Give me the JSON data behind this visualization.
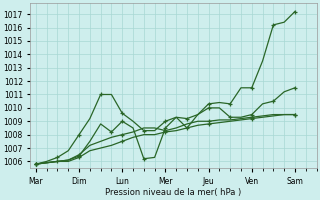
{
  "xlabel": "Pression niveau de la mer( hPa )",
  "day_labels": [
    "Mar",
    "Dim",
    "Lun",
    "Mer",
    "Jeu",
    "Ven",
    "Sam"
  ],
  "day_tick_positions": [
    0,
    4,
    8,
    12,
    16,
    20,
    24
  ],
  "xlim": [
    -0.5,
    26.0
  ],
  "ylim": [
    1005.5,
    1017.8
  ],
  "yticks": [
    1006,
    1007,
    1008,
    1009,
    1010,
    1011,
    1012,
    1013,
    1014,
    1015,
    1016,
    1017
  ],
  "bg_color": "#ceeeed",
  "grid_color": "#a8d8d4",
  "line_color": "#2a6628",
  "lines": [
    [
      1005.8,
      1005.9,
      1006.0,
      1006.1,
      1006.4,
      1007.5,
      1008.8,
      1008.2,
      1009.0,
      1008.5,
      1006.2,
      1006.3,
      1008.5,
      1009.3,
      1009.2,
      1009.5,
      1010.3,
      1010.4,
      1010.3,
      1011.5,
      1011.5,
      1013.5,
      1016.2,
      1016.4,
      1017.2
    ],
    [
      1005.8,
      1006.0,
      1006.3,
      1006.8,
      1008.0,
      1009.2,
      1011.0,
      1011.0,
      1009.6,
      1009.0,
      1008.3,
      1008.3,
      1009.0,
      1009.3,
      1008.5,
      1009.5,
      1010.0,
      1010.0,
      1009.3,
      1009.3,
      1009.5,
      1010.3,
      1010.5,
      1011.2,
      1011.5
    ],
    [
      1005.8,
      1005.9,
      1006.0,
      1006.1,
      1006.5,
      1007.2,
      1007.5,
      1007.8,
      1008.0,
      1008.2,
      1008.5,
      1008.5,
      1008.3,
      1008.5,
      1008.8,
      1009.0,
      1009.0,
      1009.1,
      1009.1,
      1009.2,
      1009.3,
      1009.4,
      1009.5,
      1009.5,
      1009.5
    ],
    [
      1005.8,
      1005.9,
      1006.0,
      1006.0,
      1006.3,
      1006.8,
      1007.0,
      1007.2,
      1007.5,
      1007.8,
      1008.0,
      1008.0,
      1008.2,
      1008.3,
      1008.5,
      1008.7,
      1008.8,
      1008.9,
      1009.0,
      1009.1,
      1009.2,
      1009.3,
      1009.4,
      1009.5,
      1009.5
    ]
  ],
  "marker": "+",
  "markersize": 3.5,
  "markevery_lines": [
    [
      0,
      2,
      4,
      7,
      8,
      10,
      12,
      14,
      16,
      18,
      20,
      22,
      24
    ],
    [
      0,
      2,
      4,
      6,
      8,
      10,
      12,
      14,
      16,
      18,
      20,
      22,
      24
    ],
    [
      0,
      4,
      8,
      12,
      16,
      20,
      24
    ],
    [
      0,
      4,
      8,
      12,
      16,
      20,
      24
    ]
  ],
  "linewidth": 0.9
}
